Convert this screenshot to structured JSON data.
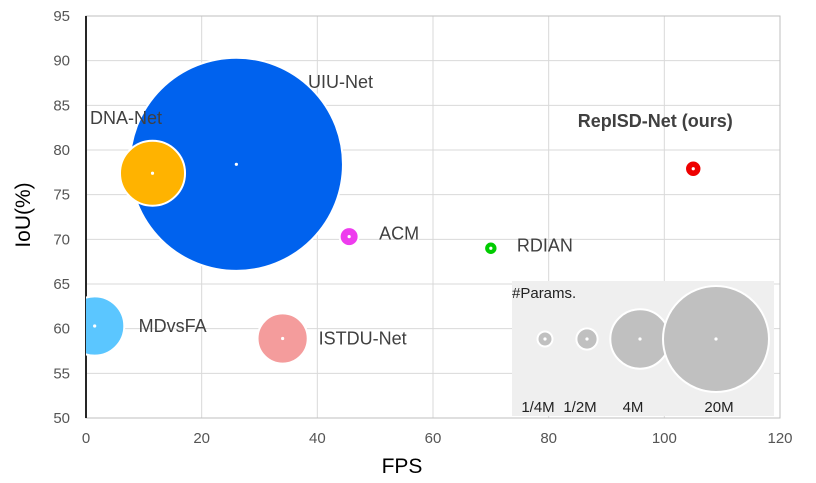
{
  "chart_data": {
    "type": "scatter",
    "subtype": "bubble",
    "xlabel": "FPS",
    "ylabel": "IoU(%)",
    "xlim": [
      0,
      120
    ],
    "ylim": [
      50,
      95
    ],
    "x_ticks": [
      "0",
      "20",
      "40",
      "60",
      "80",
      "100",
      "120"
    ],
    "y_ticks": [
      "50",
      "55",
      "60",
      "65",
      "70",
      "75",
      "80",
      "85",
      "90",
      "95"
    ],
    "grid": true,
    "points": [
      {
        "name": "UIU-Net",
        "x": 26,
        "y": 78.4,
        "params_m": 50.5,
        "color": "#0062ee"
      },
      {
        "name": "DNA-Net",
        "x": 11.5,
        "y": 77.4,
        "params_m": 4.7,
        "color": "#ffb300"
      },
      {
        "name": "ACM",
        "x": 45.5,
        "y": 70.3,
        "params_m": 0.4,
        "color": "#ee3cee"
      },
      {
        "name": "RDIAN",
        "x": 70,
        "y": 69.0,
        "params_m": 0.2,
        "color": "#00cc00"
      },
      {
        "name": "MDvsFA",
        "x": 1.5,
        "y": 60.3,
        "params_m": 3.9,
        "color": "#5bc6ff"
      },
      {
        "name": "ISTDU-Net",
        "x": 34,
        "y": 58.9,
        "params_m": 2.8,
        "color": "#f49c9c"
      },
      {
        "name": "RepISD-Net (ours)",
        "x": 105,
        "y": 77.9,
        "params_m": 0.3,
        "color": "#ee0000"
      }
    ],
    "size_legend": {
      "title": "#Params.",
      "items": [
        {
          "label": "1/4M",
          "params_m": 0.25
        },
        {
          "label": "1/2M",
          "params_m": 0.5
        },
        {
          "label": "4M",
          "params_m": 4
        },
        {
          "label": "20M",
          "params_m": 20
        }
      ],
      "position": "bottom-right",
      "color": "#c0c0c0"
    }
  }
}
